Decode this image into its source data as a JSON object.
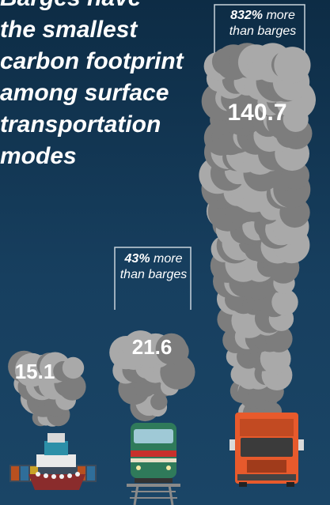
{
  "headline": "Barges have\nthe smallest\ncarbon footprint\namong surface\ntransportation\nmodes",
  "callouts": {
    "rail": {
      "pct": "43%",
      "rest": "more than barges"
    },
    "truck": {
      "pct": "832%",
      "rest": "more than barges"
    }
  },
  "chart_data": {
    "type": "bar",
    "title": "Barges have the smallest carbon footprint among surface transportation modes",
    "categories": [
      "barge",
      "rail",
      "truck"
    ],
    "values": [
      15.1,
      21.6,
      140.7
    ],
    "value_labels": [
      "15.1",
      "21.6",
      "140.7"
    ],
    "annotations": [
      "43% more than barges",
      "832% more than barges"
    ],
    "mark": "smoke plume above icon",
    "colors": {
      "smoke": "#7d7d7d",
      "smoke_light": "#a9a9a9",
      "background": "#173f5f",
      "text": "#ffffff"
    }
  }
}
